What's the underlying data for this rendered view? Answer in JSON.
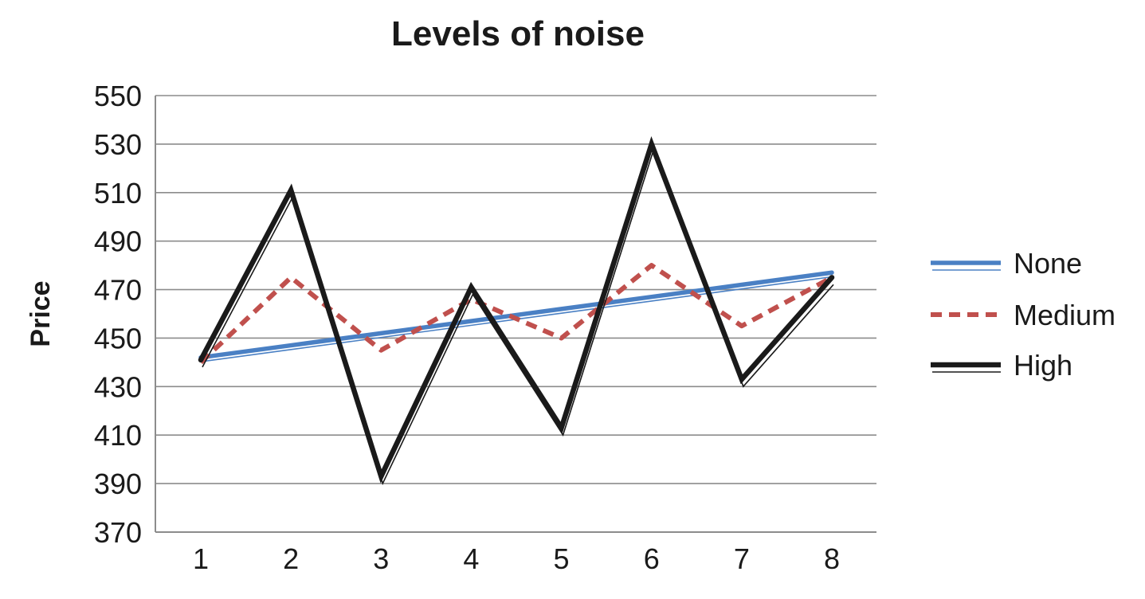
{
  "chart_data": {
    "type": "line",
    "title": "Levels of noise",
    "xlabel": "",
    "ylabel": "Price",
    "x": [
      1,
      2,
      3,
      4,
      5,
      6,
      7,
      8
    ],
    "ylim": [
      370,
      550
    ],
    "yticks": [
      370,
      390,
      410,
      430,
      450,
      470,
      490,
      510,
      530,
      550
    ],
    "grid": true,
    "legend_position": "right",
    "series": [
      {
        "name": "None",
        "color": "#4a80c4",
        "style": "solid-double",
        "values": [
          442,
          447,
          452,
          457,
          462,
          467,
          472,
          477
        ]
      },
      {
        "name": "Medium",
        "color": "#c0504d",
        "style": "dashed",
        "values": [
          440,
          475,
          445,
          466,
          450,
          480,
          455,
          475
        ]
      },
      {
        "name": "High",
        "color": "#1a1a1a",
        "style": "solid-double",
        "values": [
          441,
          511,
          393,
          471,
          413,
          530,
          433,
          475
        ]
      }
    ]
  }
}
